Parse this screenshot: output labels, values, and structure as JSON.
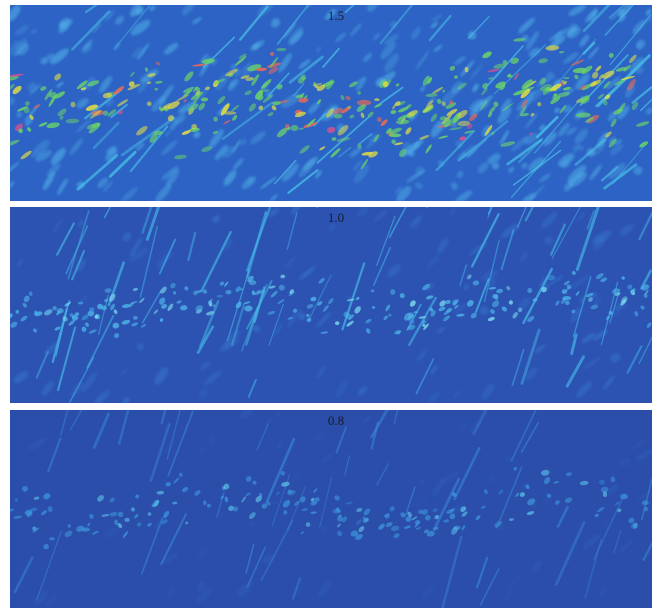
{
  "panels": [
    {
      "label": "1.5"
    },
    {
      "label": "1.0"
    },
    {
      "label": "0.8"
    }
  ]
}
